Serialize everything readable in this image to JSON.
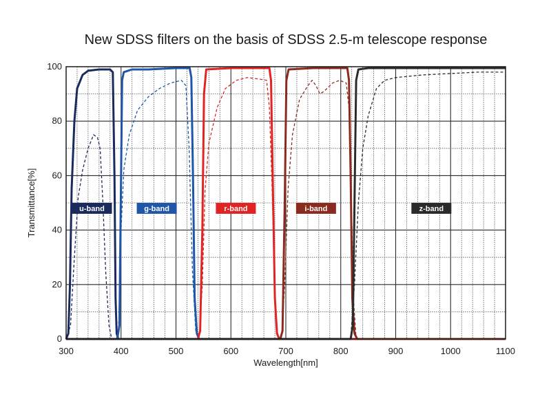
{
  "chart_data": {
    "type": "line",
    "title": "New SDSS filters on the basis of SDSS 2.5-m telescope response",
    "xlabel": "Wavelength[nm]",
    "ylabel": "Transmittance[%]",
    "xlim": [
      300,
      1100
    ],
    "ylim": [
      0,
      100
    ],
    "xticks": [
      300,
      400,
      500,
      600,
      700,
      800,
      900,
      1000,
      1100
    ],
    "yticks": [
      0,
      20,
      40,
      60,
      80,
      100
    ],
    "grid": true,
    "series": [
      {
        "name": "u-band",
        "color": "#1b2a5c",
        "label_at": [
          347,
          48
        ],
        "solid": [
          [
            300,
            0
          ],
          [
            304,
            2
          ],
          [
            307,
            20
          ],
          [
            310,
            55
          ],
          [
            315,
            80
          ],
          [
            320,
            92
          ],
          [
            330,
            97
          ],
          [
            340,
            98.5
          ],
          [
            360,
            99
          ],
          [
            380,
            99
          ],
          [
            385,
            98
          ],
          [
            388,
            60
          ],
          [
            390,
            15
          ],
          [
            392,
            2
          ],
          [
            395,
            0
          ],
          [
            1100,
            0
          ]
        ],
        "dashed": [
          [
            300,
            0
          ],
          [
            308,
            5
          ],
          [
            315,
            30
          ],
          [
            322,
            52
          ],
          [
            330,
            62
          ],
          [
            340,
            70
          ],
          [
            350,
            75
          ],
          [
            357,
            74
          ],
          [
            362,
            70
          ],
          [
            367,
            50
          ],
          [
            372,
            25
          ],
          [
            378,
            5
          ],
          [
            383,
            0
          ],
          [
            1100,
            0
          ]
        ]
      },
      {
        "name": "g-band",
        "color": "#1f56a8",
        "label_at": [
          465,
          48
        ],
        "solid": [
          [
            300,
            0
          ],
          [
            393,
            0
          ],
          [
            397,
            5
          ],
          [
            400,
            60
          ],
          [
            402,
            95
          ],
          [
            405,
            98
          ],
          [
            420,
            99
          ],
          [
            450,
            99
          ],
          [
            500,
            99.5
          ],
          [
            525,
            99.5
          ],
          [
            528,
            96
          ],
          [
            531,
            60
          ],
          [
            534,
            15
          ],
          [
            538,
            2
          ],
          [
            542,
            0
          ],
          [
            1100,
            0
          ]
        ],
        "dashed": [
          [
            300,
            0
          ],
          [
            395,
            0
          ],
          [
            400,
            40
          ],
          [
            405,
            62
          ],
          [
            415,
            75
          ],
          [
            430,
            84
          ],
          [
            450,
            89
          ],
          [
            470,
            92
          ],
          [
            490,
            94
          ],
          [
            510,
            95
          ],
          [
            518,
            93
          ],
          [
            524,
            70
          ],
          [
            530,
            25
          ],
          [
            536,
            3
          ],
          [
            542,
            0
          ],
          [
            1100,
            0
          ]
        ]
      },
      {
        "name": "r-band",
        "color": "#e02424",
        "label_at": [
          609,
          48
        ],
        "solid": [
          [
            300,
            0
          ],
          [
            540,
            0
          ],
          [
            544,
            3
          ],
          [
            548,
            40
          ],
          [
            551,
            90
          ],
          [
            555,
            99
          ],
          [
            600,
            99.5
          ],
          [
            650,
            99.5
          ],
          [
            670,
            99.5
          ],
          [
            673,
            95
          ],
          [
            676,
            60
          ],
          [
            680,
            15
          ],
          [
            684,
            2
          ],
          [
            688,
            0
          ],
          [
            1100,
            0
          ]
        ],
        "dashed": [
          [
            300,
            0
          ],
          [
            542,
            0
          ],
          [
            548,
            20
          ],
          [
            553,
            55
          ],
          [
            560,
            72
          ],
          [
            575,
            85
          ],
          [
            590,
            92
          ],
          [
            610,
            95
          ],
          [
            630,
            96
          ],
          [
            650,
            95.5
          ],
          [
            665,
            95
          ],
          [
            670,
            85
          ],
          [
            675,
            55
          ],
          [
            680,
            15
          ],
          [
            686,
            0
          ],
          [
            1100,
            0
          ]
        ]
      },
      {
        "name": "i-band",
        "color": "#8b2a1e",
        "label_at": [
          755,
          48
        ],
        "solid": [
          [
            300,
            0
          ],
          [
            690,
            0
          ],
          [
            694,
            3
          ],
          [
            698,
            50
          ],
          [
            701,
            95
          ],
          [
            705,
            99
          ],
          [
            750,
            99.5
          ],
          [
            800,
            99.5
          ],
          [
            812,
            99.5
          ],
          [
            815,
            95
          ],
          [
            818,
            60
          ],
          [
            821,
            15
          ],
          [
            825,
            2
          ],
          [
            830,
            0
          ],
          [
            1100,
            0
          ]
        ],
        "dashed": [
          [
            300,
            0
          ],
          [
            692,
            0
          ],
          [
            698,
            20
          ],
          [
            704,
            55
          ],
          [
            712,
            75
          ],
          [
            725,
            88
          ],
          [
            740,
            93
          ],
          [
            748,
            95
          ],
          [
            755,
            93
          ],
          [
            762,
            90
          ],
          [
            770,
            91
          ],
          [
            785,
            94
          ],
          [
            798,
            95
          ],
          [
            810,
            94
          ],
          [
            815,
            85
          ],
          [
            819,
            55
          ],
          [
            823,
            15
          ],
          [
            828,
            0
          ],
          [
            1100,
            0
          ]
        ]
      },
      {
        "name": "z-band",
        "color": "#2b2b2b",
        "label_at": [
          965,
          48
        ],
        "solid": [
          [
            300,
            0
          ],
          [
            818,
            0
          ],
          [
            822,
            5
          ],
          [
            825,
            50
          ],
          [
            828,
            95
          ],
          [
            832,
            99
          ],
          [
            850,
            99.5
          ],
          [
            900,
            99.5
          ],
          [
            1000,
            99.5
          ],
          [
            1100,
            99.5
          ]
        ],
        "dashed": [
          [
            300,
            0
          ],
          [
            818,
            0
          ],
          [
            825,
            20
          ],
          [
            832,
            50
          ],
          [
            840,
            70
          ],
          [
            850,
            82
          ],
          [
            865,
            92
          ],
          [
            880,
            95
          ],
          [
            900,
            96
          ],
          [
            950,
            97
          ],
          [
            1000,
            97.5
          ],
          [
            1050,
            98
          ],
          [
            1100,
            98
          ]
        ]
      }
    ]
  }
}
